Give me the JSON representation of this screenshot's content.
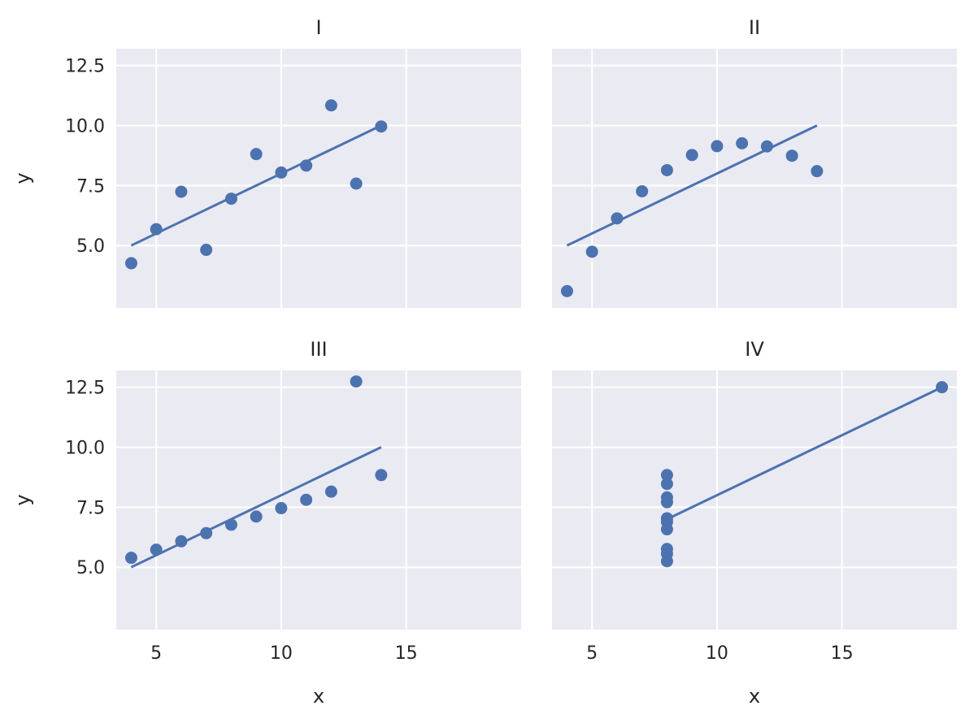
{
  "chart_data": [
    {
      "type": "scatter",
      "title": "I",
      "xlabel": "",
      "ylabel": "y",
      "xlim": [
        3.4,
        19.6
      ],
      "ylim": [
        2.4,
        13.2
      ],
      "xticks": [
        "5",
        "10",
        "15"
      ],
      "yticks": [
        "5.0",
        "7.5",
        "10.0",
        "12.5"
      ],
      "x": [
        10,
        8,
        13,
        9,
        11,
        14,
        6,
        4,
        12,
        7,
        5
      ],
      "y": [
        8.04,
        6.95,
        7.58,
        8.81,
        8.33,
        9.96,
        7.24,
        4.26,
        10.84,
        4.82,
        5.68
      ],
      "fit_line": {
        "x": [
          4,
          14
        ],
        "y": [
          5.0,
          10.0
        ]
      }
    },
    {
      "type": "scatter",
      "title": "II",
      "xlabel": "",
      "ylabel": "",
      "xlim": [
        3.4,
        19.6
      ],
      "ylim": [
        2.4,
        13.2
      ],
      "xticks": [
        "5",
        "10",
        "15"
      ],
      "yticks": [
        "5.0",
        "7.5",
        "10.0",
        "12.5"
      ],
      "x": [
        10,
        8,
        13,
        9,
        11,
        14,
        6,
        4,
        12,
        7,
        5
      ],
      "y": [
        9.14,
        8.14,
        8.74,
        8.77,
        9.26,
        8.1,
        6.13,
        3.1,
        9.13,
        7.26,
        4.74
      ],
      "fit_line": {
        "x": [
          4,
          14
        ],
        "y": [
          5.0,
          10.0
        ]
      }
    },
    {
      "type": "scatter",
      "title": "III",
      "xlabel": "x",
      "ylabel": "y",
      "xlim": [
        3.4,
        19.6
      ],
      "ylim": [
        2.4,
        13.2
      ],
      "xticks": [
        "5",
        "10",
        "15"
      ],
      "yticks": [
        "5.0",
        "7.5",
        "10.0",
        "12.5"
      ],
      "x": [
        10,
        8,
        13,
        9,
        11,
        14,
        6,
        4,
        12,
        7,
        5
      ],
      "y": [
        7.46,
        6.77,
        12.74,
        7.11,
        7.81,
        8.84,
        6.08,
        5.39,
        8.15,
        6.42,
        5.73
      ],
      "fit_line": {
        "x": [
          4,
          14
        ],
        "y": [
          5.0,
          10.0
        ]
      }
    },
    {
      "type": "scatter",
      "title": "IV",
      "xlabel": "x",
      "ylabel": "",
      "xlim": [
        3.4,
        19.6
      ],
      "ylim": [
        2.4,
        13.2
      ],
      "xticks": [
        "5",
        "10",
        "15"
      ],
      "yticks": [
        "5.0",
        "7.5",
        "10.0",
        "12.5"
      ],
      "x": [
        8,
        8,
        8,
        8,
        8,
        8,
        8,
        19,
        8,
        8,
        8
      ],
      "y": [
        6.58,
        5.76,
        7.71,
        8.84,
        8.47,
        7.04,
        5.25,
        12.5,
        5.56,
        7.91,
        6.89
      ],
      "fit_line": {
        "x": [
          8,
          19
        ],
        "y": [
          7.0,
          12.5
        ]
      }
    }
  ]
}
